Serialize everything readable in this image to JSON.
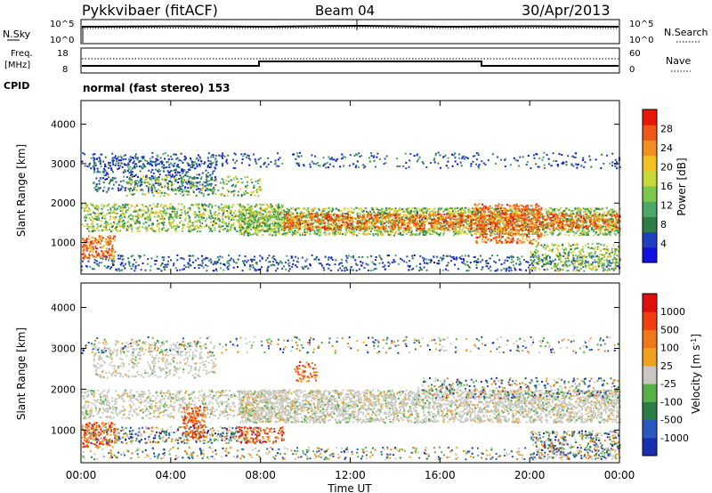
{
  "header": {
    "title": "Pykkvibaer (fitACF)",
    "beam": "Beam 04",
    "date": "30/Apr/2013"
  },
  "status_panels": {
    "nsky_label": "N.Sky",
    "nsky_ticks": [
      "10^5",
      "10^0"
    ],
    "nsearch_label": "N.Search",
    "nsearch_ticks": [
      "10^5",
      "10^0"
    ],
    "freq_label_1": "Freq.",
    "freq_label_2": "[MHz]",
    "freq_ticks": [
      "18",
      "8"
    ],
    "nave_label": "Nave",
    "nave_ticks": [
      "60",
      "0"
    ],
    "cpid_label": "CPID",
    "cpid_text": "normal (fast stereo) 153"
  },
  "x_axis": {
    "label": "Time UT",
    "ticks": [
      "00:00",
      "04:00",
      "08:00",
      "12:00",
      "16:00",
      "20:00",
      "00:00"
    ],
    "range_hours": [
      0,
      24
    ]
  },
  "chart_data": [
    {
      "type": "heatmap",
      "ylabel": "Slant Range [km]",
      "ylim": [
        200,
        4600
      ],
      "yticks": [
        "4000",
        "3000",
        "2000",
        "1000"
      ],
      "colorbar_label": "Power [dB]",
      "colorbar_ticks": [
        "28",
        "24",
        "20",
        "16",
        "12",
        "8",
        "4"
      ],
      "colors": [
        "#1010e0",
        "#2040c0",
        "#2e7d46",
        "#4aa86a",
        "#7cc84c",
        "#c8d838",
        "#f2c020",
        "#f09020",
        "#f05818",
        "#e81808"
      ]
    },
    {
      "type": "heatmap",
      "ylabel": "Slant Range [km]",
      "ylim": [
        200,
        4600
      ],
      "yticks": [
        "4000",
        "3000",
        "2000",
        "1000"
      ],
      "colorbar_label": "Velocity [m s",
      "colorbar_label_sup": "-1",
      "colorbar_label_end": "]",
      "colorbar_ticks": [
        "1000",
        "500",
        "100",
        "25",
        "-25",
        "-100",
        "-500",
        "-1000"
      ],
      "colors": [
        "#1830b0",
        "#2c58c0",
        "#2e7d46",
        "#56b048",
        "#c8c8c0",
        "#f2a020",
        "#f07818",
        "#f04010",
        "#e01010"
      ]
    }
  ]
}
